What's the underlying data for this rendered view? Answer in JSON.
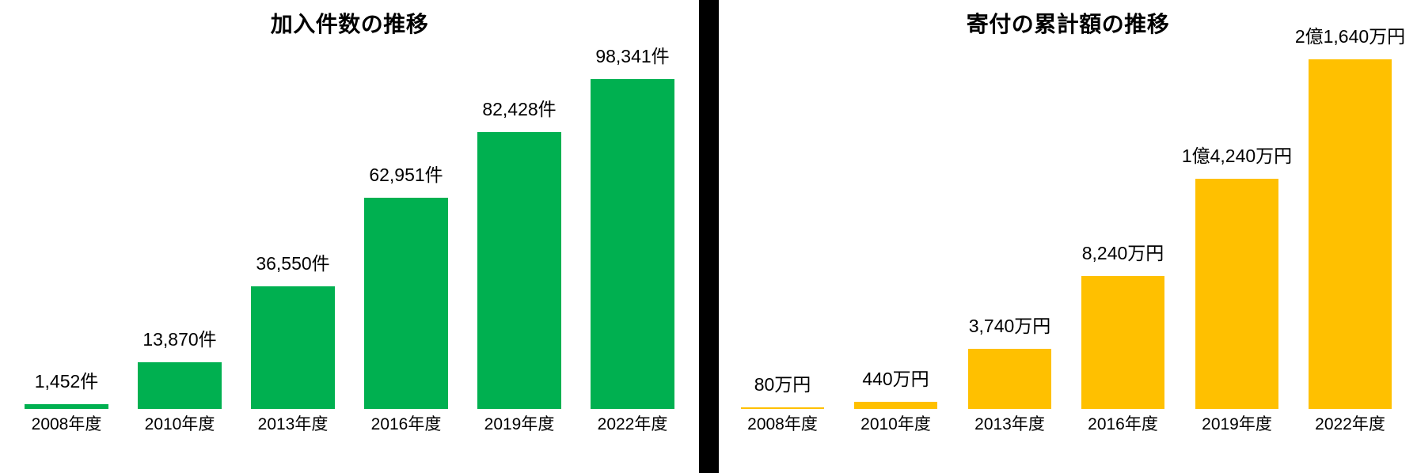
{
  "page": {
    "background_color": "#FFFFFF",
    "divider_color": "#000000",
    "text_color": "#000000"
  },
  "chart_data": [
    {
      "type": "bar",
      "title": "加入件数の推移",
      "categories": [
        "2008年度",
        "2010年度",
        "2013年度",
        "2016年度",
        "2019年度",
        "2022年度"
      ],
      "values": [
        1452,
        13870,
        36550,
        62951,
        82428,
        98341
      ],
      "value_labels": [
        "1,452件",
        "13,870件",
        "36,550件",
        "62,951件",
        "82,428件",
        "98,341件"
      ],
      "unit": "件",
      "bar_color": "#00B050",
      "ylim": [
        0,
        100000
      ],
      "grid": false,
      "legend": "none",
      "axis_lines": "none",
      "data_label_position": "outside-end"
    },
    {
      "type": "bar",
      "title": "寄付の累計額の推移",
      "categories": [
        "2008年度",
        "2010年度",
        "2013年度",
        "2016年度",
        "2019年度",
        "2022年度"
      ],
      "values": [
        80,
        440,
        3740,
        8240,
        14240,
        21640
      ],
      "value_labels": [
        "80万円",
        "440万円",
        "3,740万円",
        "8,240万円",
        "1億4,240万円",
        "2億1,640万円"
      ],
      "unit": "万円",
      "bar_color": "#FFC000",
      "ylim": [
        0,
        22000
      ],
      "grid": false,
      "legend": "none",
      "axis_lines": "none",
      "data_label_position": "outside-end"
    }
  ]
}
